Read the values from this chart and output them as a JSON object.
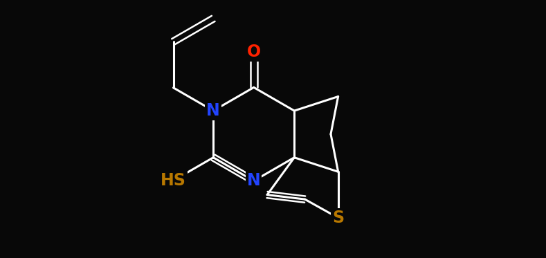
{
  "background_color": "#080808",
  "bond_color": "#ffffff",
  "atom_colors": {
    "O": "#ff2200",
    "N": "#2244ff",
    "S_thiol": "#b87800",
    "S_ring": "#b87800"
  },
  "bond_width": 2.2,
  "font_size_atoms": 17,
  "figsize": [
    7.89,
    3.73
  ],
  "dpi": 100,
  "xlim": [
    -3.2,
    3.8
  ],
  "ylim": [
    -2.0,
    2.0
  ]
}
